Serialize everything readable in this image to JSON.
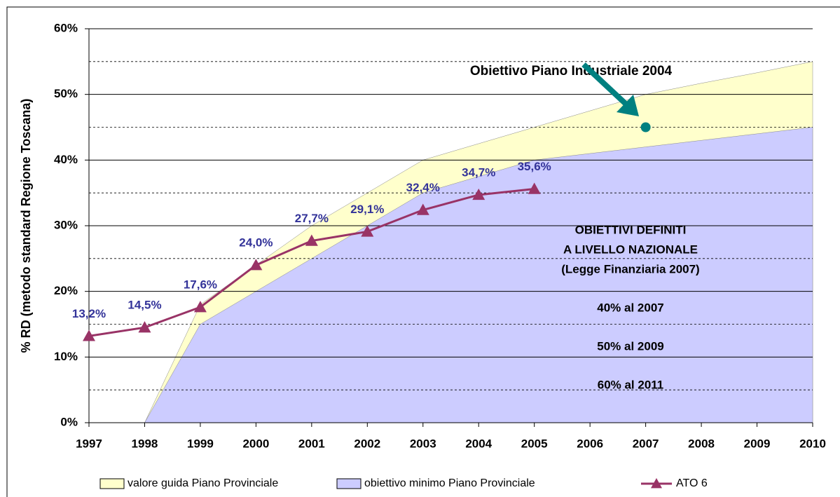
{
  "chart_data": {
    "type": "line",
    "y_label": "% RD (metodo standard Regione Toscana)",
    "x": [
      1997,
      1998,
      1999,
      2000,
      2001,
      2002,
      2003,
      2004,
      2005,
      2006,
      2007,
      2008,
      2009,
      2010
    ],
    "xlim": [
      1997,
      2010
    ],
    "xticks": [
      1997,
      1998,
      1999,
      2000,
      2001,
      2002,
      2003,
      2004,
      2005,
      2006,
      2007,
      2008,
      2009,
      2010
    ],
    "ylim": [
      0,
      60
    ],
    "yticks": [
      {
        "value": 0,
        "label": "0%"
      },
      {
        "value": 10,
        "label": "10%"
      },
      {
        "value": 20,
        "label": "20%"
      },
      {
        "value": 30,
        "label": "30%"
      },
      {
        "value": 40,
        "label": "40%"
      },
      {
        "value": 50,
        "label": "50%"
      },
      {
        "value": 60,
        "label": "60%"
      }
    ],
    "minor_yticks": [
      5,
      15,
      25,
      35,
      45,
      55
    ],
    "grid": true,
    "series": [
      {
        "name": "valore guida Piano Provinciale",
        "kind": "area",
        "color": "#ffffcc",
        "values": [
          null,
          0,
          18,
          24,
          30,
          35,
          40,
          42.5,
          45,
          47.5,
          50,
          51.7,
          53.3,
          55
        ]
      },
      {
        "name": "obiettivo minimo Piano Provinciale",
        "kind": "area",
        "color": "#ccccff",
        "values": [
          null,
          0,
          15,
          20,
          25,
          30,
          35,
          37.5,
          40,
          41,
          42,
          43,
          44,
          45
        ]
      },
      {
        "name": "ATO 6",
        "kind": "line",
        "color": "#993366",
        "values": [
          13.2,
          14.5,
          17.6,
          24.0,
          27.7,
          29.1,
          32.4,
          34.7,
          35.6,
          null,
          null,
          null,
          null,
          null
        ],
        "value_labels": [
          "13,2%",
          "14,5%",
          "17,6%",
          "24,0%",
          "27,7%",
          "29,1%",
          "32,4%",
          "34,7%",
          "35,6%",
          null,
          null,
          null,
          null,
          null
        ]
      }
    ],
    "target": {
      "x": 2007,
      "value": 45,
      "label": "Obiettivo Piano Industriale 2004",
      "color": "#008080"
    },
    "annotation": [
      "OBIETTIVI DEFINITI",
      "A LIVELLO NAZIONALE",
      "(Legge Finanziaria 2007)",
      "40% al 2007",
      "50% al 2009",
      "60% al 2011"
    ]
  }
}
